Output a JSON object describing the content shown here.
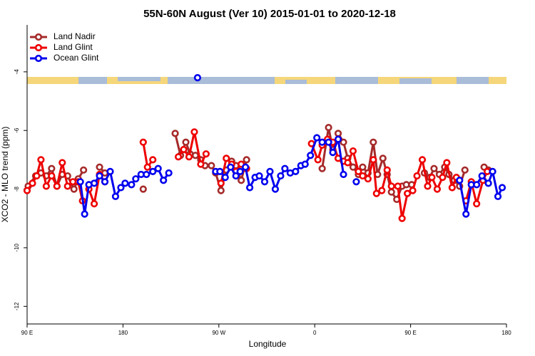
{
  "chart_data": {
    "type": "line",
    "title": "55N-60N August (Ver 10)   2015-01-01 to 2020-12-18",
    "x_label": "Longitude",
    "y_label": "XCO2 - MLO trend (ppm)",
    "xlim": [
      90,
      540
    ],
    "ylim": [
      -12.6,
      -2.4
    ],
    "xticks": [
      {
        "value": 90,
        "label": "90 E"
      },
      {
        "value": 180,
        "label": "180"
      },
      {
        "value": 270,
        "label": "90 W"
      },
      {
        "value": 360,
        "label": "0"
      },
      {
        "value": 450,
        "label": "90 E"
      },
      {
        "value": 540,
        "label": "180"
      }
    ],
    "yticks": [
      -4,
      -6,
      -8,
      -10,
      -12
    ],
    "legend": "top-left",
    "series": [
      {
        "name": "Land Nadir",
        "color": "#a52a2a",
        "x": [
          91,
          98,
          103,
          108,
          113,
          118,
          123,
          128,
          134,
          138,
          143,
          null,
          158,
          163,
          null,
          199,
          null,
          229,
          234,
          239,
          243,
          248,
          253,
          257,
          263,
          267,
          272,
          277,
          282,
          286,
          291,
          296,
          null,
          367,
          373,
          377,
          382,
          387,
          391,
          396,
          401,
          405,
          410,
          415,
          419,
          424,
          428,
          432,
          437,
          442,
          446,
          451,
          null,
          463,
          468,
          472,
          477,
          482,
          486,
          491,
          496,
          501,
          null,
          519,
          523
        ],
        "values": [
          -7.9,
          -7.55,
          -7.45,
          -7.55,
          -7.3,
          -7.9,
          -7.5,
          -7.55,
          -8.0,
          -7.65,
          -7.35,
          null,
          -7.25,
          -7.45,
          null,
          -8.0,
          null,
          -6.1,
          -6.85,
          -6.4,
          -6.8,
          -6.85,
          -7.0,
          -7.2,
          -7.2,
          -7.45,
          -8.05,
          -7.35,
          -7.05,
          -7.2,
          -7.7,
          -7.0,
          null,
          -7.3,
          -5.9,
          -6.65,
          -6.1,
          -6.4,
          -6.95,
          -7.25,
          -7.5,
          -7.25,
          -7.45,
          -6.4,
          -7.5,
          -6.95,
          -7.5,
          -8.1,
          -8.35,
          -7.9,
          -7.85,
          -7.85,
          null,
          -7.45,
          -7.6,
          -7.3,
          -7.5,
          -7.25,
          -7.5,
          -7.7,
          -7.9,
          -7.35,
          null,
          -7.25,
          -7.35
        ]
      },
      {
        "name": "Land Glint",
        "color": "#ee0000",
        "x": [
          90,
          95,
          99,
          103,
          108,
          113,
          118,
          123,
          128,
          133,
          138,
          142,
          null,
          148,
          153,
          158,
          163,
          null,
          199,
          203,
          208,
          null,
          232,
          237,
          242,
          247,
          253,
          258,
          null,
          272,
          277,
          282,
          286,
          291,
          296,
          null,
          357,
          363,
          367,
          372,
          377,
          382,
          387,
          391,
          396,
          401,
          405,
          410,
          415,
          418,
          423,
          428,
          432,
          438,
          442,
          447,
          452,
          456,
          461,
          466,
          470,
          475,
          480,
          484,
          489,
          493,
          null,
          502,
          507,
          512,
          518,
          522
        ],
        "values": [
          -8.05,
          -7.8,
          -7.55,
          -7.0,
          -7.9,
          -7.55,
          -7.9,
          -7.1,
          -7.9,
          -7.75,
          -7.75,
          -8.4,
          null,
          -8.0,
          -8.5,
          -7.5,
          -7.75,
          null,
          -6.4,
          -7.25,
          -7.0,
          null,
          -6.9,
          -6.65,
          -6.9,
          -6.05,
          -7.15,
          -6.8,
          null,
          -7.8,
          -6.95,
          -7.15,
          -7.4,
          -7.15,
          -7.3,
          null,
          -6.45,
          -7.0,
          -6.5,
          -6.3,
          -6.4,
          -6.95,
          -7.05,
          -7.1,
          -6.7,
          -7.4,
          -7.55,
          -7.65,
          -7.0,
          -8.15,
          -8.05,
          -7.35,
          -7.9,
          -7.9,
          -9.0,
          -8.15,
          -8.05,
          -7.55,
          -7.0,
          -7.9,
          -7.6,
          -8.0,
          -7.6,
          -7.1,
          -7.95,
          -7.6,
          null,
          -8.4,
          -7.75,
          -8.5,
          -7.7,
          -7.4
        ]
      },
      {
        "name": "Ocean Glint",
        "color": "#0000ee",
        "x": [
          140,
          144,
          148,
          153,
          158,
          163,
          168,
          173,
          178,
          182,
          188,
          192,
          197,
          202,
          208,
          213,
          218,
          223,
          null,
          250,
          null,
          267,
          271,
          276,
          281,
          286,
          290,
          295,
          299,
          304,
          308,
          313,
          318,
          323,
          328,
          332,
          337,
          342,
          347,
          351,
          356,
          362,
          367,
          373,
          377,
          382,
          387,
          null,
          399,
          null,
          496,
          502,
          507,
          512,
          517,
          523,
          527,
          532,
          536
        ],
        "values": [
          -7.75,
          -8.85,
          -7.85,
          -7.8,
          -7.55,
          -7.75,
          -7.4,
          -8.25,
          -7.95,
          -7.8,
          -7.85,
          -7.65,
          -7.5,
          -7.5,
          -7.4,
          -7.3,
          -7.7,
          -7.45,
          null,
          -4.2,
          null,
          -7.4,
          -7.4,
          -7.6,
          -7.25,
          -7.55,
          -7.4,
          -7.25,
          -7.95,
          -7.6,
          -7.55,
          -7.75,
          -7.4,
          -8.0,
          -7.55,
          -7.3,
          -7.45,
          -7.4,
          -7.2,
          -7.15,
          -6.85,
          -6.25,
          -6.4,
          -6.4,
          -6.75,
          -6.3,
          -7.5,
          null,
          -7.75,
          null,
          -7.7,
          -8.85,
          -7.85,
          -7.85,
          -7.55,
          -7.8,
          -7.4,
          -8.25,
          -7.95
        ]
      }
    ]
  }
}
